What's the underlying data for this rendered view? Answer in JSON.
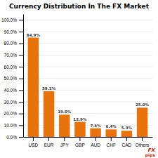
{
  "chart_data": {
    "type": "bar",
    "title": "Currency Distribution In The FX Market",
    "categories": [
      "USD",
      "EUR",
      "JPY",
      "GBP",
      "AUD",
      "CHF",
      "CAD",
      "Others"
    ],
    "values": [
      84.9,
      39.1,
      19.0,
      12.9,
      7.4,
      6.4,
      5.3,
      25.0
    ],
    "value_labels": [
      "84.9%",
      "39.1%",
      "19.0%",
      "12.9%",
      "7.4%",
      "6.4%",
      "5.3%",
      "25.0%"
    ],
    "data_labels": true,
    "color": "#E8720C",
    "ylim": [
      0,
      105
    ],
    "yticks": [
      {
        "value": 0,
        "label": "0.0%"
      },
      {
        "value": 10,
        "label": "10.0%"
      },
      {
        "value": 20,
        "label": "20.0%"
      },
      {
        "value": 30,
        "label": "30.0%"
      },
      {
        "value": 40,
        "label": "40.0%"
      },
      {
        "value": 50,
        "label": "50.0%"
      },
      {
        "value": 60,
        "label": "60.0%"
      },
      {
        "value": 70,
        "label": "70.0%"
      },
      {
        "value": 80,
        "label": "80.0%"
      },
      {
        "value": 90,
        "label": "90.0%"
      },
      {
        "value": 100,
        "label": "100.0%"
      }
    ],
    "grid": true,
    "annotations": [
      "FX",
      "pips"
    ]
  }
}
